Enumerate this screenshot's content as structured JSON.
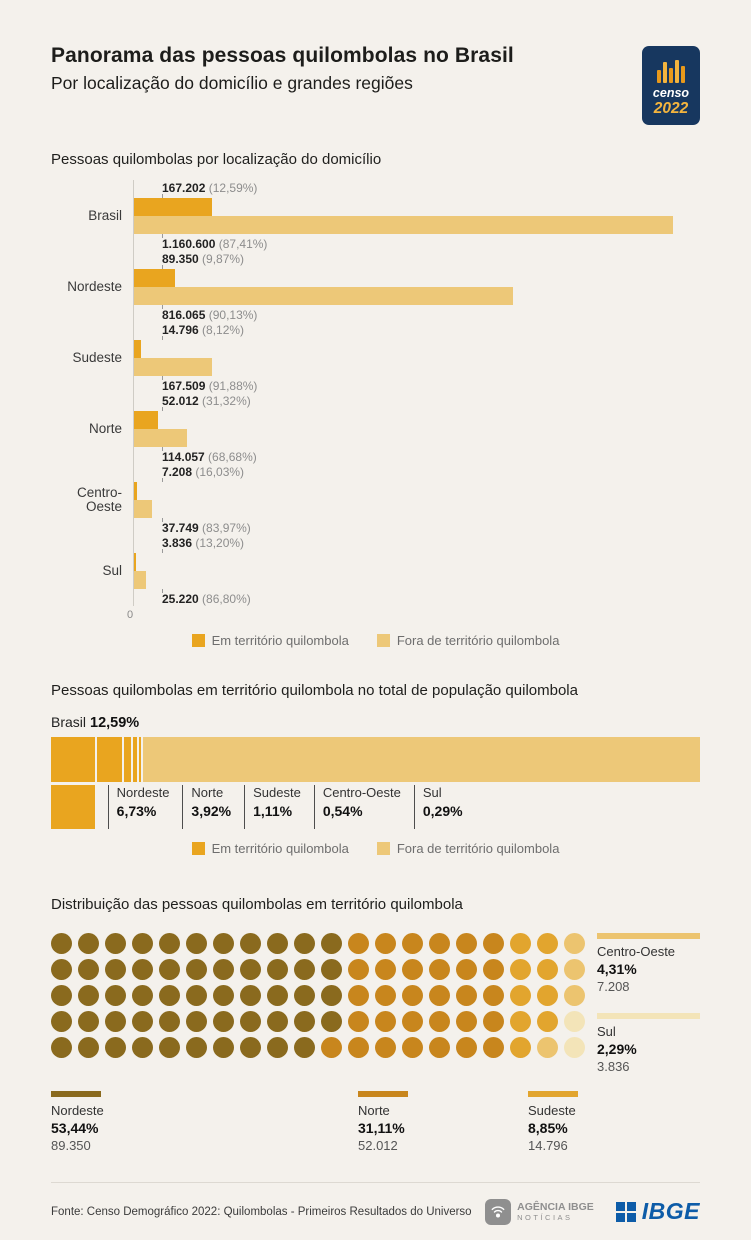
{
  "page": {
    "title": "Panorama das pessoas quilombolas no Brasil",
    "subtitle": "Por localização do domicílio e grandes regiões"
  },
  "censo_logo": {
    "word": "censo",
    "year": "2022"
  },
  "colors": {
    "background": "#F4F1EC",
    "in_territory": "#E9A51F",
    "out_territory": "#EDC878",
    "censo_navy": "#17375F",
    "censo_orange": "#E8991B",
    "censo_yellow": "#F3B43E",
    "ibge_blue": "#0D5CA8",
    "agencia_gray": "#8F8F8F"
  },
  "legend": {
    "in_label": "Em território quilombola",
    "out_label": "Fora de território quilombola"
  },
  "chart_data": [
    {
      "type": "bar",
      "orientation": "horizontal",
      "title": "Pessoas quilombolas por localização do domicílio",
      "categories": [
        "Brasil",
        "Nordeste",
        "Sudeste",
        "Norte",
        "Centro-Oeste",
        "Sul"
      ],
      "series": [
        {
          "name": "Em território quilombola",
          "values": [
            167202,
            89350,
            14796,
            52012,
            7208,
            3836
          ],
          "value_labels": [
            "167.202",
            "89.350",
            "14.796",
            "52.012",
            "7.208",
            "3.836"
          ],
          "pct_labels": [
            "(12,59%)",
            "(9,87%)",
            "(8,12%)",
            "(31,32%)",
            "(16,03%)",
            "(13,20%)"
          ]
        },
        {
          "name": "Fora de território quilombola",
          "values": [
            1160600,
            816065,
            167509,
            114057,
            37749,
            25220
          ],
          "value_labels": [
            "1.160.600",
            "816.065",
            "167.509",
            "114.057",
            "37.749",
            "25.220"
          ],
          "pct_labels": [
            "(87,41%)",
            "(90,13%)",
            "(91,88%)",
            "(68,68%)",
            "(83,97%)",
            "(86,80%)"
          ]
        }
      ],
      "xlim": [
        0,
        1160600
      ],
      "x_axis_zero_label": "0",
      "legend_position": "bottom"
    },
    {
      "type": "stacked-bar",
      "title": "Pessoas quilombolas em território quilombola no total de população quilombola",
      "total_label": {
        "name": "Brasil",
        "pct": "12,59%"
      },
      "segments": [
        {
          "name": "Nordeste",
          "pct": "6,73%",
          "value": 6.73
        },
        {
          "name": "Norte",
          "pct": "3,92%",
          "value": 3.92
        },
        {
          "name": "Sudeste",
          "pct": "1,11%",
          "value": 1.11
        },
        {
          "name": "Centro-Oeste",
          "pct": "0,54%",
          "value": 0.54
        },
        {
          "name": "Sul",
          "pct": "0,29%",
          "value": 0.29
        }
      ],
      "remainder_pct": 87.41,
      "legend_position": "bottom"
    },
    {
      "type": "waffle",
      "title": "Distribuição das pessoas quilombolas em território quilombola",
      "rows": 5,
      "cols": 20,
      "regions": [
        {
          "name": "Nordeste",
          "pct": "53,44%",
          "value_label": "89.350",
          "share": 53.44,
          "dots": 54,
          "color": "#8A6A1E"
        },
        {
          "name": "Norte",
          "pct": "31,11%",
          "value_label": "52.012",
          "share": 31.11,
          "dots": 31,
          "color": "#C8861D"
        },
        {
          "name": "Sudeste",
          "pct": "8,85%",
          "value_label": "14.796",
          "share": 8.85,
          "dots": 9,
          "color": "#E2A52E"
        },
        {
          "name": "Centro-Oeste",
          "pct": "4,31%",
          "value_label": "7.208",
          "share": 4.31,
          "dots": 4,
          "color": "#ECC46F"
        },
        {
          "name": "Sul",
          "pct": "2,29%",
          "value_label": "3.836",
          "share": 2.29,
          "dots": 2,
          "color": "#F3E4B8"
        }
      ]
    }
  ],
  "footer": {
    "source": "Fonte: Censo Demográfico 2022: Quilombolas - Primeiros Resultados do Universo",
    "agencia_logo": {
      "line1": "AGÊNCIA IBGE",
      "line2": "NOTÍCIAS"
    },
    "ibge_logo_text": "IBGE"
  }
}
